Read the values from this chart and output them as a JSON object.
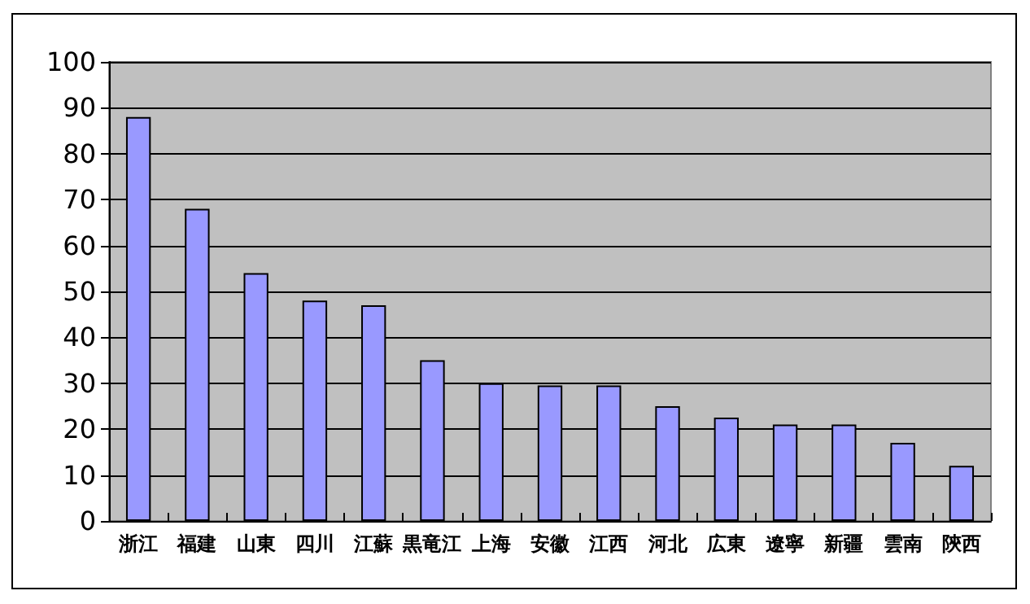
{
  "chart_data": {
    "type": "bar",
    "categories": [
      "浙江",
      "福建",
      "山東",
      "四川",
      "江蘇",
      "黒竜江",
      "上海",
      "安徽",
      "江西",
      "河北",
      "広東",
      "遼寧",
      "新疆",
      "雲南",
      "陝西"
    ],
    "values": [
      88,
      68,
      54,
      48,
      47,
      35,
      30,
      29.5,
      29.5,
      25,
      22.5,
      21,
      21,
      17,
      12
    ],
    "color": "#9999ff",
    "ylim": [
      0,
      100
    ],
    "yticks": [
      0,
      10,
      20,
      30,
      40,
      50,
      60,
      70,
      80,
      90,
      100
    ],
    "grid": true
  }
}
